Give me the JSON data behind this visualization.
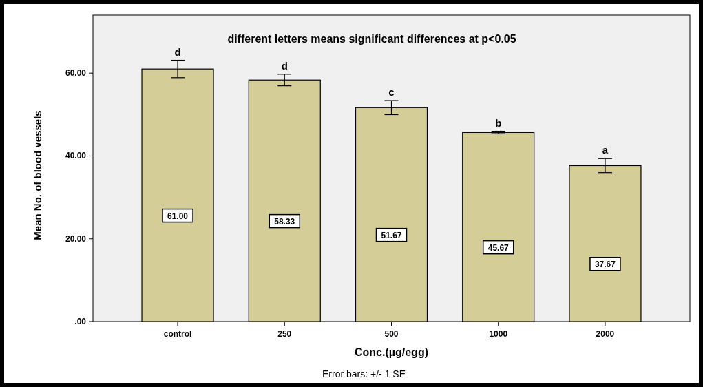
{
  "chart_data": {
    "type": "bar",
    "title": "different letters means significant differences at p<0.05",
    "xlabel": "Conc.(µg/egg)",
    "ylabel": "Mean No. of blood vessels",
    "categories": [
      "control",
      "250",
      "500",
      "1000",
      "2000"
    ],
    "values": [
      61.0,
      58.33,
      51.67,
      45.67,
      37.67
    ],
    "errors": [
      2.1,
      1.4,
      1.7,
      0.3,
      1.7
    ],
    "color": "#d4cd98",
    "value_labels": [
      "61.00",
      "58.33",
      "51.67",
      "45.67",
      "37.67"
    ],
    "ylim": [
      0,
      74
    ],
    "yticks": [
      {
        "value": 0,
        "label": ".00"
      },
      {
        "value": 20,
        "label": "20.00"
      },
      {
        "value": 40,
        "label": "40.00"
      },
      {
        "value": 60,
        "label": "60.00"
      }
    ],
    "annotations": [
      {
        "text": "d",
        "x": "control",
        "y": 63.1
      },
      {
        "text": "d",
        "x": "250",
        "y": 59.73
      },
      {
        "text": "c",
        "x": "500",
        "y": 53.37
      },
      {
        "text": "b",
        "x": "1000",
        "y": 45.97
      },
      {
        "text": "a",
        "x": "2000",
        "y": 39.37
      },
      "Error bars: +/- 1 SE"
    ]
  }
}
